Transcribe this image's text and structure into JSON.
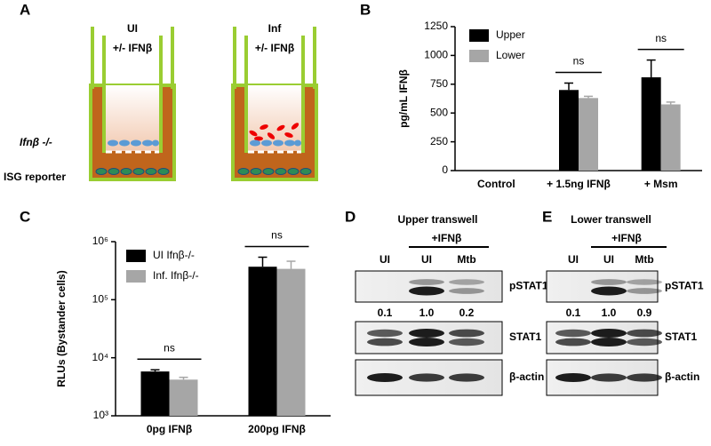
{
  "panel_letters": [
    "A",
    "B",
    "C",
    "D",
    "E"
  ],
  "diagram": {
    "wells": [
      {
        "label": "UI",
        "treatment": "+/- IFNβ"
      },
      {
        "label": "Inf",
        "treatment": "+/- IFNβ"
      }
    ],
    "upper_cells": "Ifnβ -/-",
    "lower_cells": "ISG reporter"
  },
  "chart_data": [
    {
      "type": "bar",
      "ylabel": "pg/mL IFNβ",
      "categories": [
        "Control",
        "+ 1.5ng IFNβ",
        "+ Msm"
      ],
      "series": [
        {
          "name": "Upper",
          "color": "#000000",
          "values": [
            0,
            700,
            810
          ],
          "errors": [
            0,
            60,
            150
          ]
        },
        {
          "name": "Lower",
          "color": "#a6a6a6",
          "values": [
            0,
            630,
            575
          ],
          "errors": [
            0,
            15,
            20
          ]
        }
      ],
      "ylim": [
        0,
        1250
      ],
      "yticks": [
        0,
        250,
        500,
        750,
        1000,
        1250
      ],
      "legend": "upper-left",
      "annotations": [
        "ns",
        "ns"
      ]
    },
    {
      "type": "bar",
      "ylabel": "RLUs (Bystander cells)",
      "log_scale": true,
      "categories": [
        "0pg IFNβ",
        "200pg IFNβ"
      ],
      "series": [
        {
          "name": "UI Ifnβ-/-",
          "color": "#000000",
          "values": [
            5800,
            370000
          ],
          "errors": [
            400,
            170000
          ]
        },
        {
          "name": "Inf. Ifnβ-/-",
          "color": "#a6a6a6",
          "values": [
            4200,
            340000
          ],
          "errors": [
            400,
            120000
          ]
        }
      ],
      "ylim": [
        1000,
        1000000
      ],
      "yticks": [
        {
          "value": 1000,
          "label": "10³"
        },
        {
          "value": 10000,
          "label": "10⁴"
        },
        {
          "value": 100000,
          "label": "10⁵"
        },
        {
          "value": 1000000,
          "label": "10⁶"
        }
      ],
      "legend": "upper-left",
      "annotations": [
        "ns",
        "ns"
      ]
    }
  ],
  "blots": [
    {
      "title": "Upper transwell",
      "treatment": "+IFNβ",
      "lanes": [
        "UI",
        "UI",
        "Mtb"
      ],
      "bands": [
        "pSTAT1",
        "STAT1",
        "β-actin"
      ],
      "quantification": [
        "0.1",
        "1.0",
        "0.2"
      ]
    },
    {
      "title": "Lower transwell",
      "treatment": "+IFNβ",
      "lanes": [
        "UI",
        "UI",
        "Mtb"
      ],
      "bands": [
        "pSTAT1",
        "STAT1",
        "β-actin"
      ],
      "quantification": [
        "0.1",
        "1.0",
        "0.9"
      ]
    }
  ]
}
